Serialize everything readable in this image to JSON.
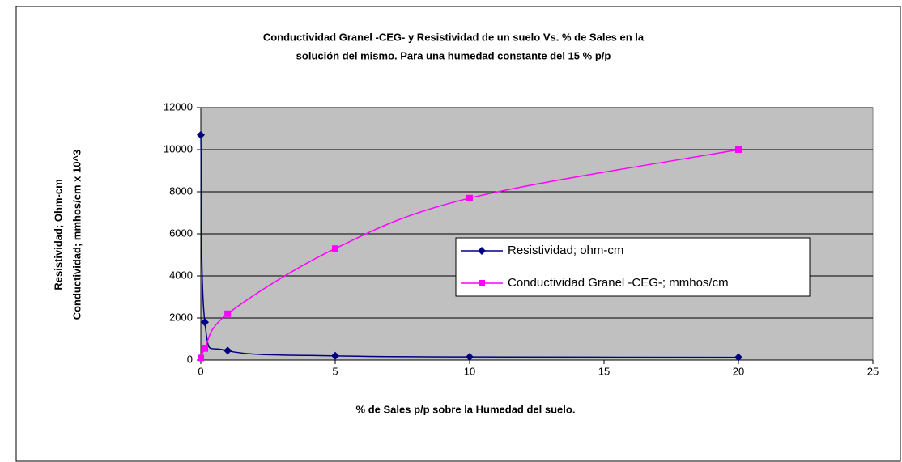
{
  "chart_data": {
    "type": "line",
    "title": [
      "Conductividad Granel -CEG- y Resistividad de un suelo Vs. % de Sales en la",
      "solución del mismo.  Para una humedad constante del 15 % p/p"
    ],
    "x_label": "% de Sales p/p sobre la Humedad del suelo.",
    "y_label": [
      "Resistividad; Ohm-cm",
      "Conductividad; mmhos/cm x 10^3"
    ],
    "series": [
      {
        "name": "Resistividad; ohm-cm",
        "color": "#000080",
        "marker": "diamond",
        "x": [
          0,
          0.15,
          1,
          5,
          10,
          20
        ],
        "values": [
          10700,
          1800,
          450,
          200,
          150,
          130
        ]
      },
      {
        "name": "Conductividad Granel -CEG-; mmhos/cm",
        "color": "#ff00ff",
        "marker": "square",
        "x": [
          0,
          0.15,
          1,
          5,
          10,
          20
        ],
        "values": [
          100,
          550,
          2200,
          5300,
          7700,
          10000
        ]
      }
    ],
    "xlim": [
      0,
      25
    ],
    "xticks": [
      0,
      5,
      10,
      15,
      20,
      25
    ],
    "ylim": [
      0,
      12000
    ],
    "yticks": [
      0,
      2000,
      4000,
      6000,
      8000,
      10000,
      12000
    ],
    "grid": true,
    "smooth": true,
    "plot_background": "#c0c0c0"
  }
}
